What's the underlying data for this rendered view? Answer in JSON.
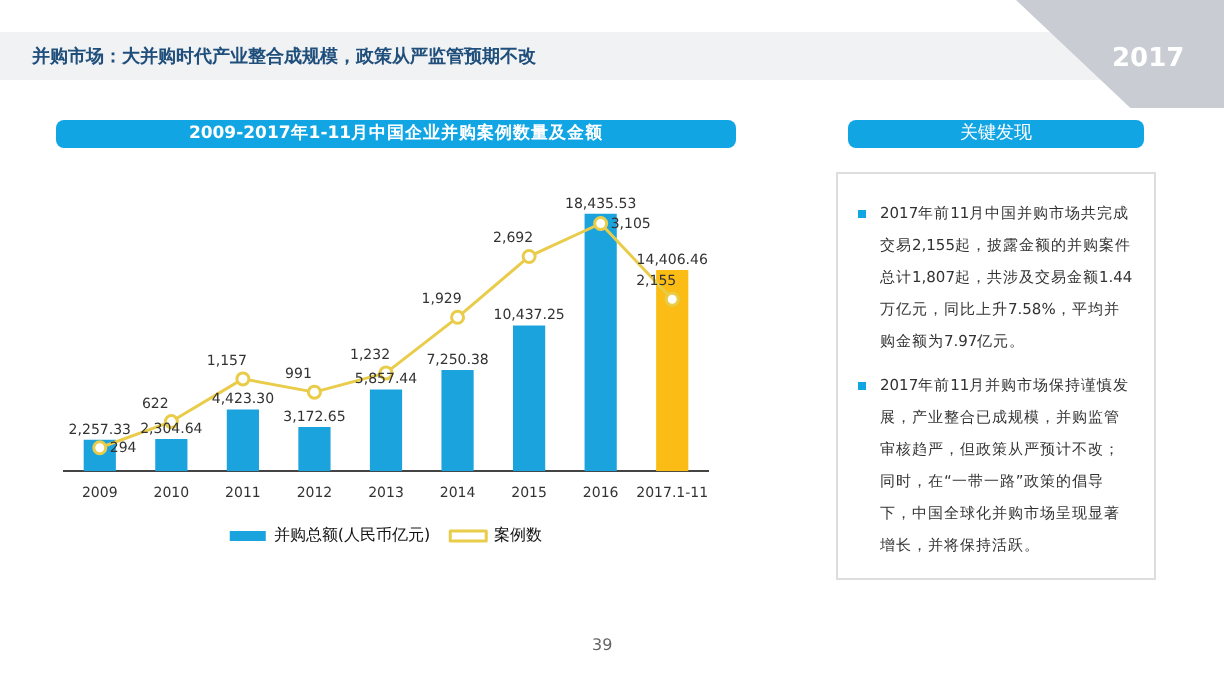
{
  "chart_data": [
    {
      "type": "bar",
      "title": "2009-2017年1-11月中国企业并购案例数量及金额",
      "annotations": [
        "并购市场：大并购时代产业整合成规模，政策从严监管预期不改",
        "2017",
        "39"
      ],
      "categories": [
        "2009",
        "2010",
        "2011",
        "2012",
        "2013",
        "2014",
        "2015",
        "2016",
        "2017.1-11"
      ],
      "series": [
        {
          "name": "并购总额(人民币亿元)",
          "type": "bar",
          "colors": [
            "#1aa3dc",
            "#1aa3dc",
            "#1aa3dc",
            "#1aa3dc",
            "#1aa3dc",
            "#1aa3dc",
            "#1aa3dc",
            "#1aa3dc",
            "#fbbd15"
          ],
          "values": [
            2257.33,
            2304.64,
            4423.3,
            3172.65,
            5857.44,
            7250.38,
            10437.25,
            18435.53,
            14406.46
          ],
          "value_labels": [
            "2,257.33",
            "2,304.64",
            "4,423.30",
            "3,172.65",
            "5,857.44",
            "7,250.38",
            "10,437.25",
            "18,435.53",
            "14,406.46"
          ]
        },
        {
          "name": "案例数",
          "type": "line",
          "axis": "y2",
          "color": "#e9cc4a",
          "marker": "circle",
          "values": [
            294,
            622,
            1157,
            991,
            1232,
            1929,
            2692,
            3105,
            2155
          ],
          "value_labels": [
            "294",
            "622",
            "1,157",
            "991",
            "1,232",
            "1,929",
            "2,692",
            "3,105",
            "2,155"
          ]
        }
      ],
      "legend": "bottom",
      "tick_labels": "x",
      "grid": false
    },
    {
      "type": "other",
      "title": "关键发现",
      "annotations": [
        "2017年前11月中国并购市场共完成交易2,155起，披露金额的并购案件总计1,807起，共涉及交易金额1.44万亿元，同比上升7.58%，平均并购金额为7.97亿元。",
        "2017年前11月并购市场保持谨慎发展，产业整合已成规模，并购监管审核趋严，但政策从严预计不改；同时，在“一带一路”政策的倡导下，中国全球化并购市场呈现显著增长，并将保持活跃。"
      ]
    }
  ]
}
